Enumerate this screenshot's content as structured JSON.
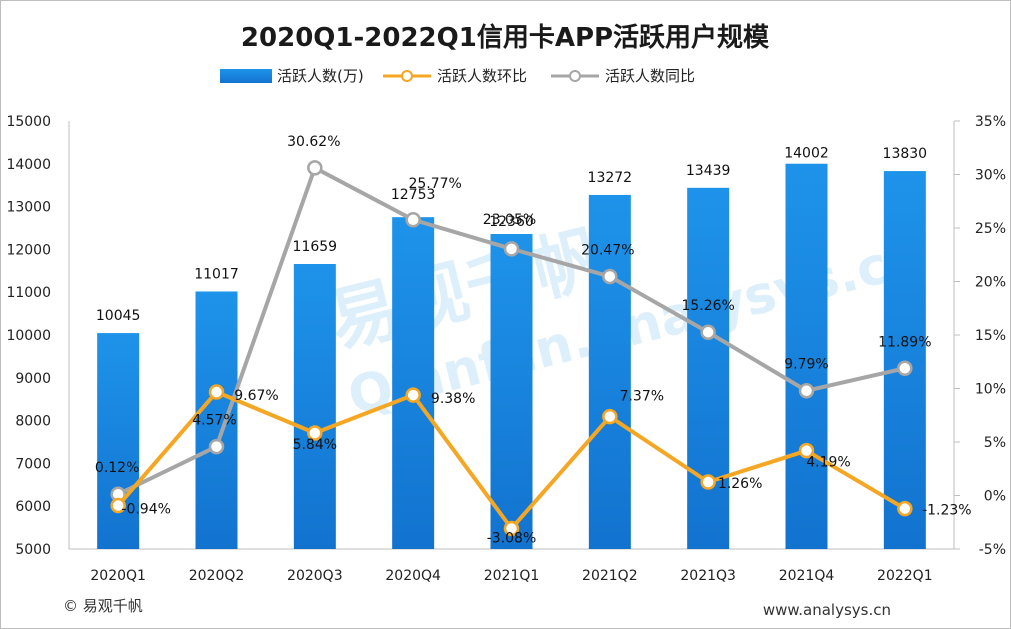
{
  "chart_data": {
    "type": "bar",
    "title": "2020Q1-2022Q1信用卡APP活跃用户规模",
    "categories": [
      "2020Q1",
      "2020Q2",
      "2020Q3",
      "2020Q4",
      "2021Q1",
      "2021Q2",
      "2021Q3",
      "2021Q4",
      "2022Q1"
    ],
    "series": [
      {
        "name": "活跃人数(万)",
        "type": "bar",
        "axis": "left",
        "color": "#1a8be0",
        "values": [
          10045,
          11017,
          11659,
          12753,
          12360,
          13272,
          13439,
          14002,
          13830
        ],
        "labels": [
          "10045",
          "11017",
          "11659",
          "12753",
          "12360",
          "13272",
          "13439",
          "14002",
          "13830"
        ]
      },
      {
        "name": "活跃人数环比",
        "type": "line",
        "axis": "right",
        "color": "#f5a623",
        "values": [
          -0.94,
          9.67,
          5.84,
          9.38,
          -3.08,
          7.37,
          1.26,
          4.19,
          -1.23
        ],
        "labels": [
          "-0.94%",
          "9.67%",
          "5.84%",
          "9.38%",
          "-3.08%",
          "7.37%",
          "1.26%",
          "4.19%",
          "-1.23%"
        ]
      },
      {
        "name": "活跃人数同比",
        "type": "line",
        "axis": "right",
        "color": "#a6a6a6",
        "values": [
          0.12,
          4.57,
          30.62,
          25.77,
          23.05,
          20.47,
          15.26,
          9.79,
          11.89
        ],
        "labels": [
          "0.12%",
          "4.57%",
          "30.62%",
          "25.77%",
          "23.05%",
          "20.47%",
          "15.26%",
          "9.79%",
          "11.89%"
        ]
      }
    ],
    "y_left": {
      "min": 5000,
      "max": 15000,
      "ticks": [
        "5000",
        "6000",
        "7000",
        "8000",
        "9000",
        "10000",
        "11000",
        "12000",
        "13000",
        "14000",
        "15000"
      ]
    },
    "y_right": {
      "min": -5,
      "max": 35,
      "ticks": [
        "-5%",
        "0%",
        "5%",
        "10%",
        "15%",
        "20%",
        "25%",
        "30%",
        "35%"
      ]
    },
    "legend": "top-center",
    "grid": false
  },
  "footer": {
    "copyright": "© 易观千帆",
    "website": "www.analysys.cn"
  },
  "watermark": {
    "brand": "易观千帆",
    "url": "Qianfan.analysys.cn"
  }
}
